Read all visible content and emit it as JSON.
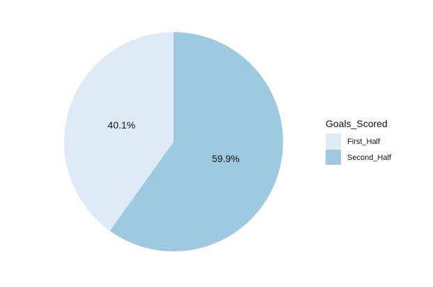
{
  "chart_data": {
    "type": "pie",
    "categories": [
      "First_Half",
      "Second_Half"
    ],
    "values": [
      40.1,
      59.9
    ],
    "labels": [
      "40.1%",
      "59.9%"
    ],
    "colors": [
      "#deebf7",
      "#9ecae1"
    ],
    "legend": {
      "title": "Goals_Scored",
      "placement": "right"
    },
    "start_angle": "12 o'clock",
    "direction": "clockwise, first slice drawn counter-clockwise side"
  }
}
